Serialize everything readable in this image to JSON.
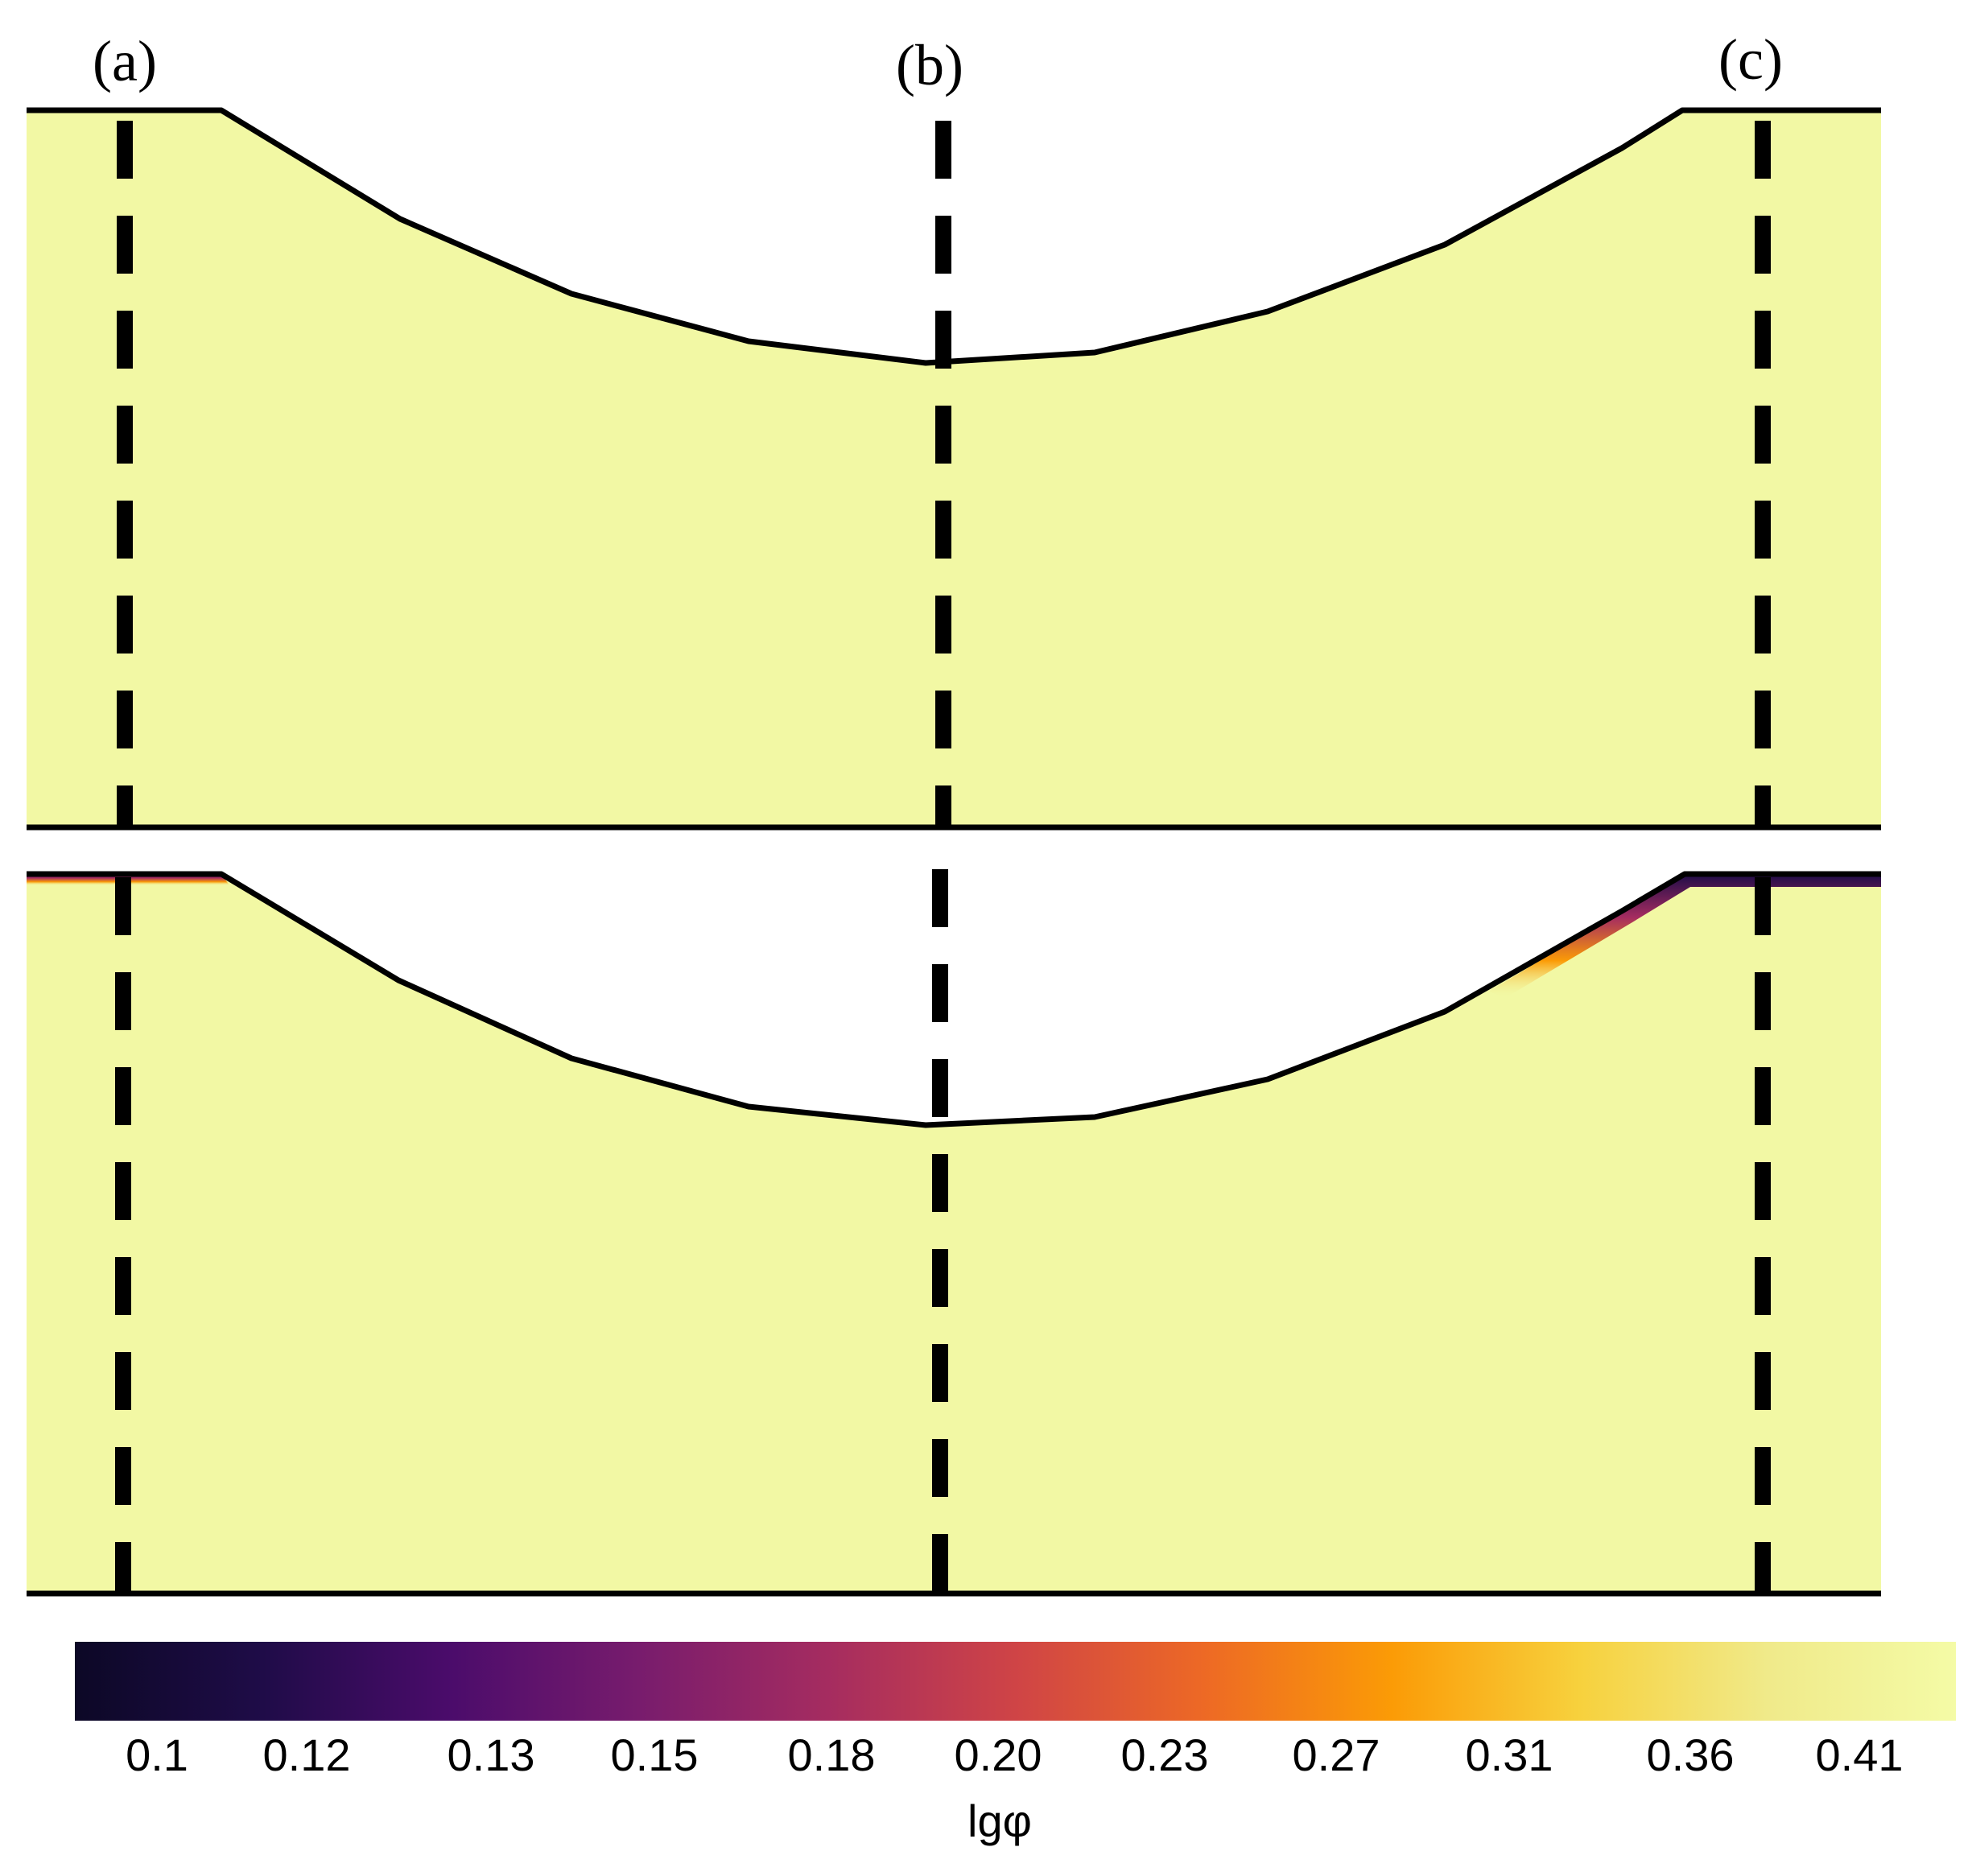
{
  "section_labels": [
    "(a)",
    "(b)",
    "(c)"
  ],
  "colorbar": {
    "title": "lgφ",
    "ticks": [
      "0.1",
      "0.12",
      "0.13",
      "0.15",
      "0.18",
      "0.20",
      "0.23",
      "0.27",
      "0.31",
      "0.36",
      "0.41"
    ],
    "colors": [
      "#0c0826",
      "#1f0c48",
      "#4b0c6b",
      "#781c6d",
      "#a52c60",
      "#cf4446",
      "#ed6925",
      "#fb9b06",
      "#f7d13d",
      "#f0ea8a",
      "#f4fba6"
    ]
  },
  "colors": {
    "field": "#f2f8a4",
    "line": "#000000"
  }
}
